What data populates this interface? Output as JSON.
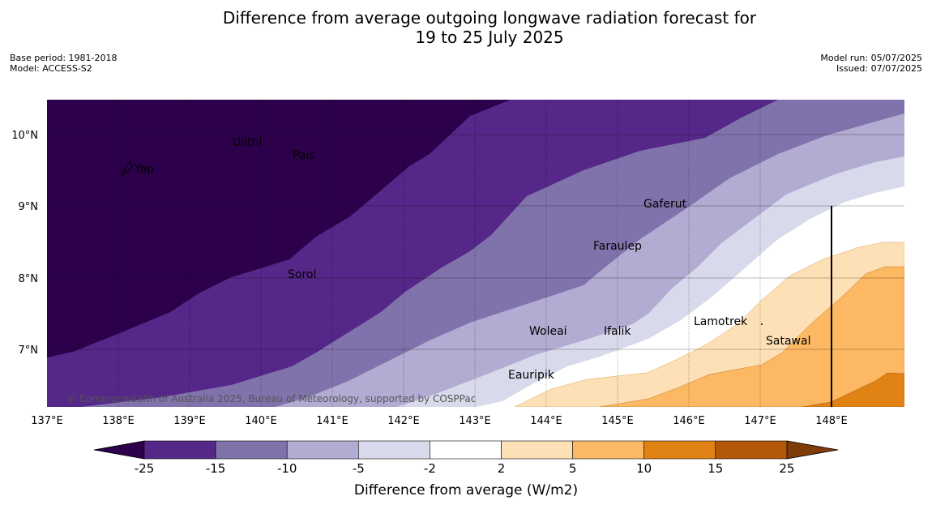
{
  "title": {
    "line1": "Difference from average outgoing longwave radiation forecast for",
    "line2": "19 to 25 July 2025"
  },
  "meta": {
    "base_period": "Base period: 1981-2018",
    "model": "Model: ACCESS-S2",
    "model_run": "Model run: 05/07/2025",
    "issued": "Issued: 07/07/2025"
  },
  "map": {
    "lon_ticks": [
      "137°E",
      "138°E",
      "139°E",
      "140°E",
      "141°E",
      "142°E",
      "143°E",
      "144°E",
      "145°E",
      "146°E",
      "147°E",
      "148°E"
    ],
    "lat_ticks": [
      "10°N",
      "9°N",
      "8°N",
      "7°N"
    ],
    "places": [
      {
        "name": "Yap"
      },
      {
        "name": "Ulithi"
      },
      {
        "name": "Pais"
      },
      {
        "name": "Sorol"
      },
      {
        "name": "Gaferut"
      },
      {
        "name": "Faraulep"
      },
      {
        "name": "Woleai"
      },
      {
        "name": "Ifalik"
      },
      {
        "name": "Lamotrek"
      },
      {
        "name": "Satawal"
      },
      {
        "name": "Eauripik"
      }
    ],
    "copyright": "© Commonwealth of Australia 2025, Bureau of Meteorology, supported by COSPPac"
  },
  "legend": {
    "ticks": [
      "-25",
      "-15",
      "-10",
      "-5",
      "-2",
      "2",
      "5",
      "10",
      "15",
      "25"
    ],
    "colors": [
      "#542788",
      "#8073ac",
      "#b2abd2",
      "#d8daeb",
      "#ffffff",
      "#fee0b6",
      "#fdb863",
      "#e08214",
      "#b35806"
    ],
    "under_color": "#2d004b",
    "over_color": "#7f3b08",
    "label": "Difference from average (W/m2)"
  }
}
